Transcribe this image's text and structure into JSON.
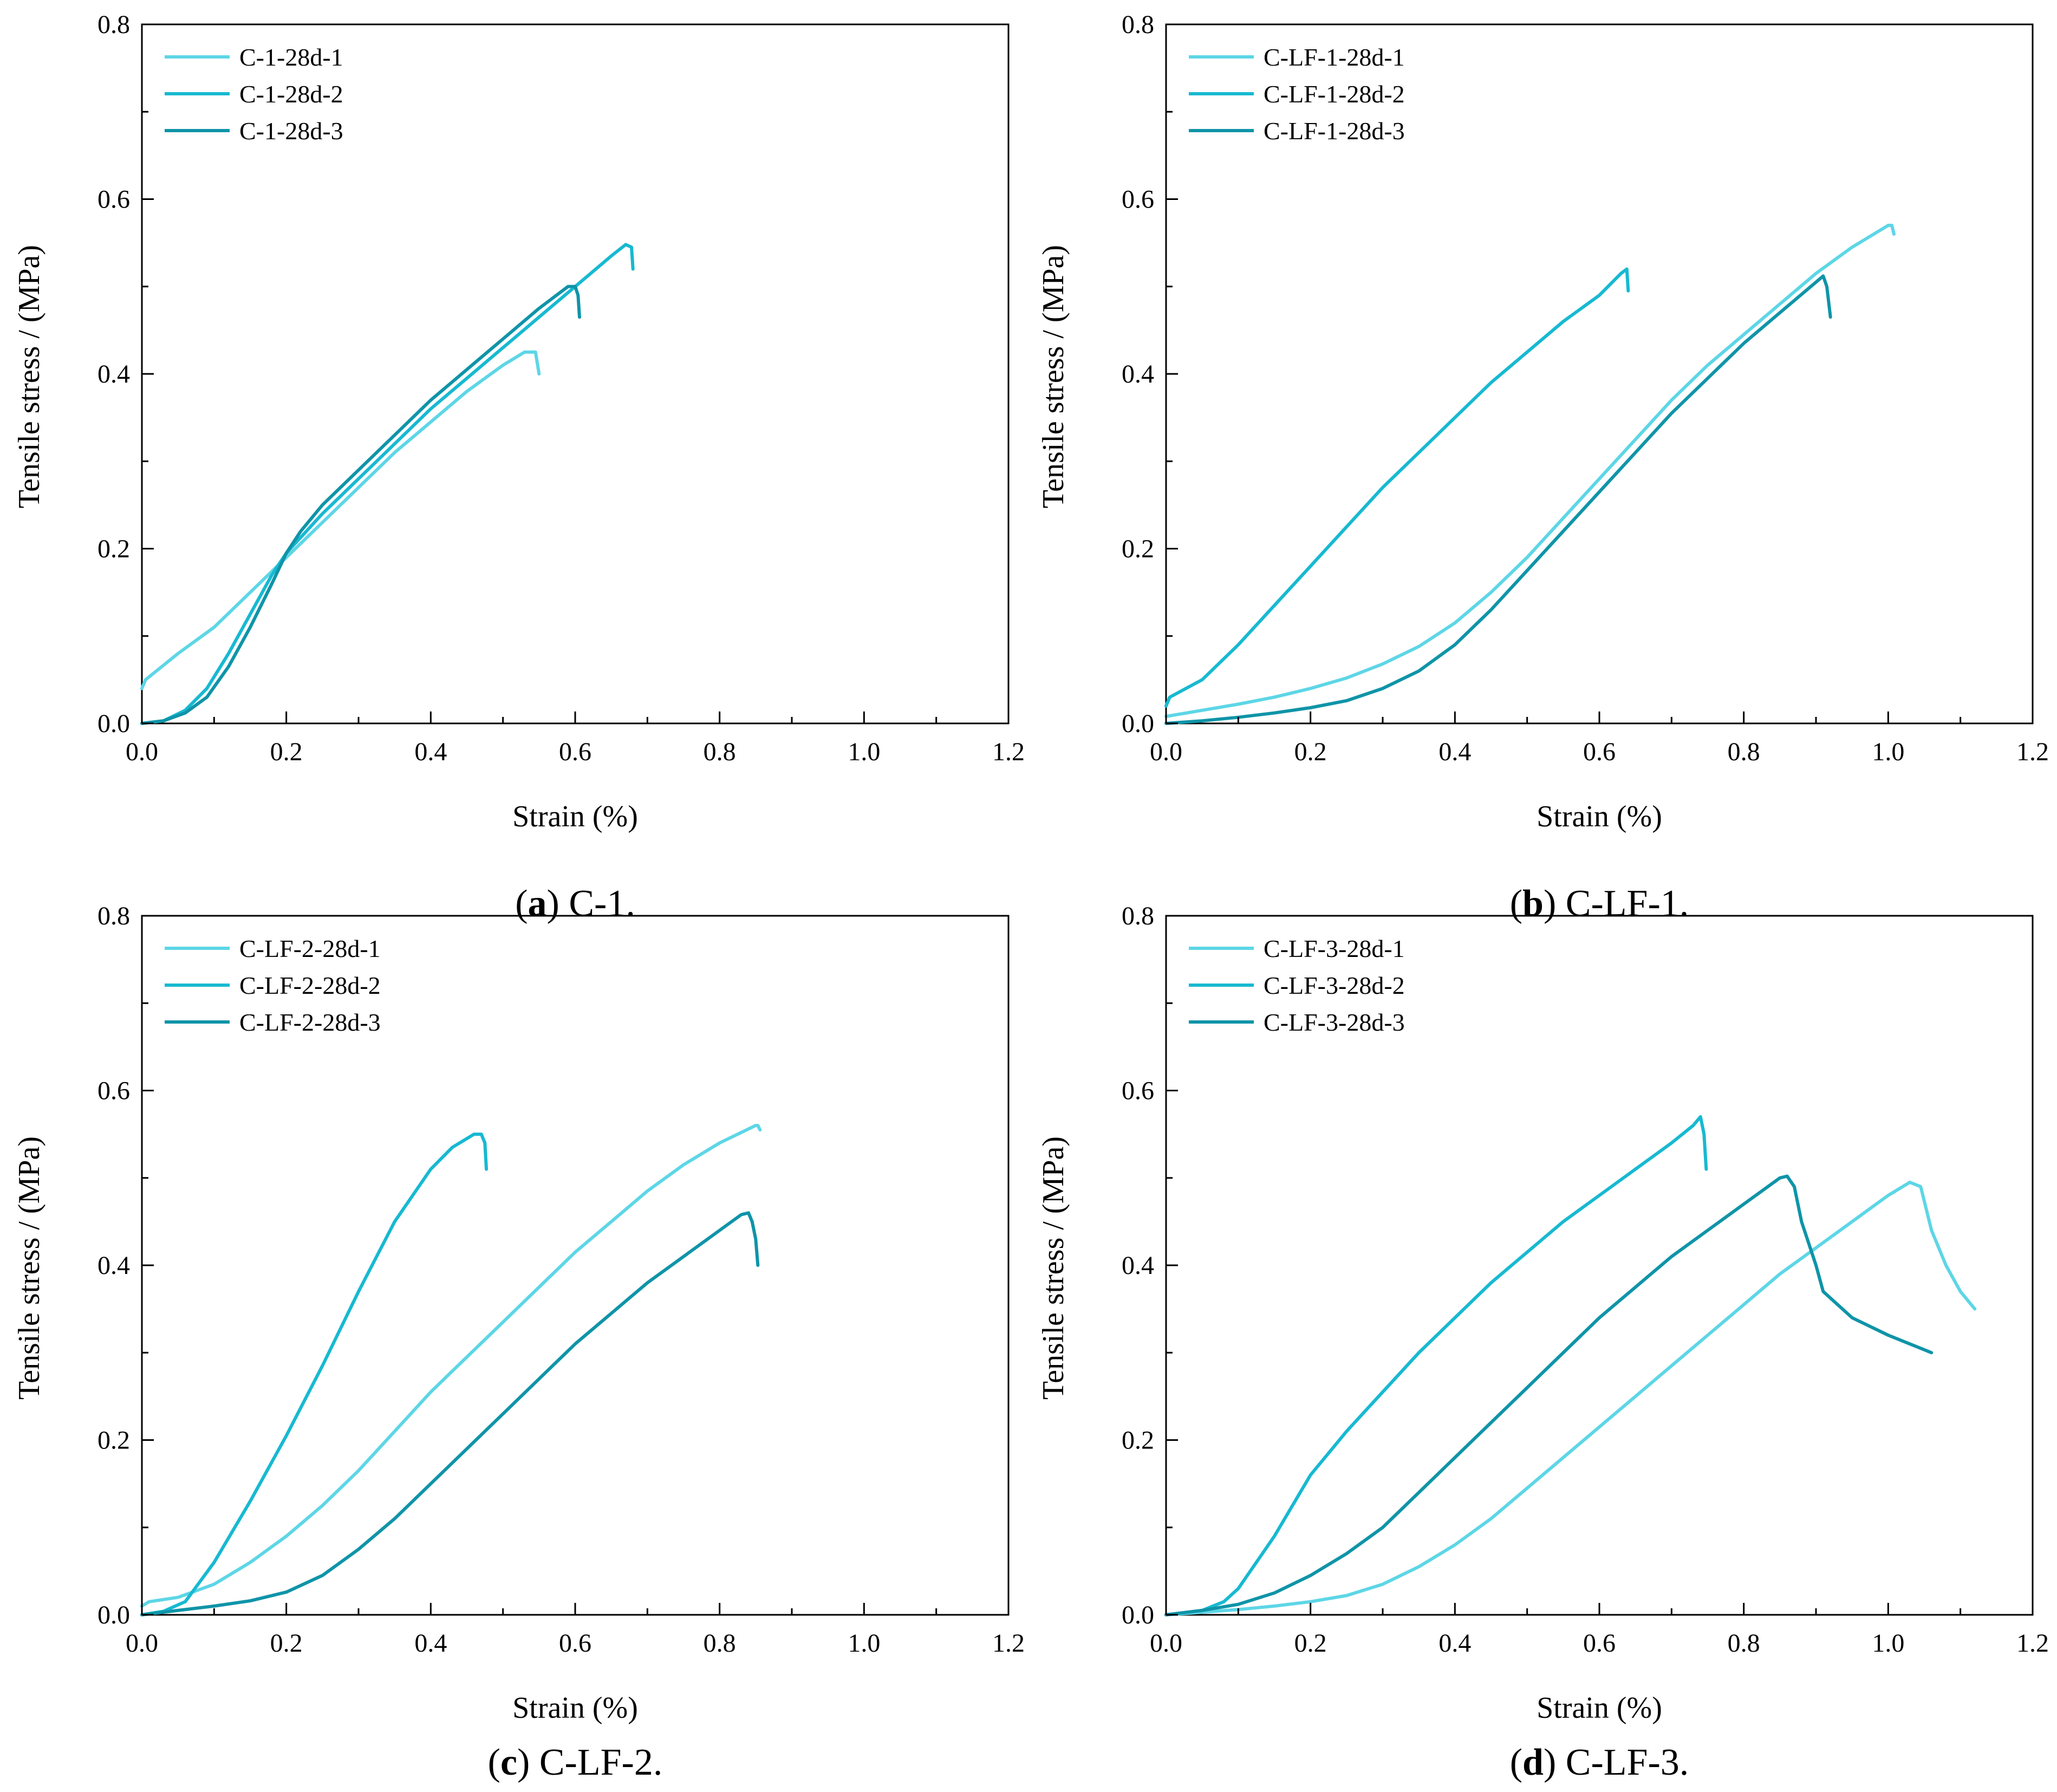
{
  "figure": {
    "colors": {
      "series1": "#5dd6e6",
      "series2": "#17b9d1",
      "series3": "#0f94a8",
      "axis": "#000000"
    },
    "panels": [
      {
        "caption_letter": "a",
        "caption_text": "C-1.",
        "chart_ref": 0
      },
      {
        "caption_letter": "b",
        "caption_text": "C-LF-1.",
        "chart_ref": 1
      },
      {
        "caption_letter": "c",
        "caption_text": "C-LF-2.",
        "chart_ref": 2
      },
      {
        "caption_letter": "d",
        "caption_text": "C-LF-3.",
        "chart_ref": 3
      }
    ]
  },
  "chart_data": [
    {
      "type": "line",
      "title": "",
      "xlabel": "Strain (%)",
      "ylabel": "Tensile stress / (MPa)",
      "xlim": [
        0,
        1.2
      ],
      "ylim": [
        0,
        0.8
      ],
      "xticks": [
        "0.0",
        "0.2",
        "0.4",
        "0.6",
        "0.8",
        "1.0",
        "1.2"
      ],
      "yticks": [
        "0.0",
        "0.2",
        "0.4",
        "0.6",
        "0.8"
      ],
      "legend_position": "top-left",
      "series": [
        {
          "name": "C-1-28d-1",
          "x": [
            0,
            0.005,
            0.02,
            0.05,
            0.1,
            0.15,
            0.2,
            0.25,
            0.3,
            0.35,
            0.4,
            0.45,
            0.5,
            0.53,
            0.545,
            0.55
          ],
          "y": [
            0.04,
            0.05,
            0.06,
            0.08,
            0.11,
            0.15,
            0.19,
            0.23,
            0.27,
            0.31,
            0.345,
            0.38,
            0.41,
            0.425,
            0.425,
            0.4
          ]
        },
        {
          "name": "C-1-28d-2",
          "x": [
            0,
            0.03,
            0.06,
            0.09,
            0.12,
            0.15,
            0.18,
            0.2,
            0.25,
            0.3,
            0.35,
            0.4,
            0.45,
            0.5,
            0.55,
            0.6,
            0.65,
            0.67,
            0.678,
            0.68
          ],
          "y": [
            0,
            0.003,
            0.015,
            0.04,
            0.08,
            0.125,
            0.17,
            0.195,
            0.24,
            0.28,
            0.32,
            0.36,
            0.395,
            0.43,
            0.465,
            0.5,
            0.535,
            0.548,
            0.545,
            0.52
          ]
        },
        {
          "name": "C-1-28d-3",
          "x": [
            0,
            0.03,
            0.06,
            0.09,
            0.12,
            0.15,
            0.18,
            0.2,
            0.22,
            0.25,
            0.3,
            0.35,
            0.4,
            0.45,
            0.5,
            0.55,
            0.59,
            0.6,
            0.604,
            0.606
          ],
          "y": [
            0,
            0.003,
            0.012,
            0.03,
            0.065,
            0.11,
            0.16,
            0.195,
            0.22,
            0.25,
            0.29,
            0.33,
            0.37,
            0.405,
            0.44,
            0.475,
            0.5,
            0.5,
            0.49,
            0.465
          ]
        }
      ]
    },
    {
      "type": "line",
      "title": "",
      "xlabel": "Strain (%)",
      "ylabel": "Tensile stress / (MPa)",
      "xlim": [
        0,
        1.2
      ],
      "ylim": [
        0,
        0.8
      ],
      "xticks": [
        "0.0",
        "0.2",
        "0.4",
        "0.6",
        "0.8",
        "1.0",
        "1.2"
      ],
      "yticks": [
        "0.0",
        "0.2",
        "0.4",
        "0.6",
        "0.8"
      ],
      "legend_position": "top-left",
      "series": [
        {
          "name": "C-LF-1-28d-1",
          "x": [
            0,
            0.05,
            0.1,
            0.15,
            0.2,
            0.25,
            0.3,
            0.35,
            0.4,
            0.45,
            0.5,
            0.55,
            0.6,
            0.65,
            0.7,
            0.75,
            0.8,
            0.85,
            0.9,
            0.95,
            1.0,
            1.005,
            1.008
          ],
          "y": [
            0.008,
            0.015,
            0.022,
            0.03,
            0.04,
            0.052,
            0.068,
            0.088,
            0.115,
            0.15,
            0.19,
            0.235,
            0.28,
            0.325,
            0.37,
            0.41,
            0.445,
            0.48,
            0.515,
            0.545,
            0.57,
            0.57,
            0.56
          ]
        },
        {
          "name": "C-LF-1-28d-2",
          "x": [
            0,
            0.005,
            0.05,
            0.1,
            0.15,
            0.2,
            0.25,
            0.3,
            0.35,
            0.4,
            0.45,
            0.5,
            0.55,
            0.6,
            0.63,
            0.638,
            0.64
          ],
          "y": [
            0.02,
            0.03,
            0.05,
            0.09,
            0.135,
            0.18,
            0.225,
            0.27,
            0.31,
            0.35,
            0.39,
            0.425,
            0.46,
            0.49,
            0.515,
            0.52,
            0.495
          ]
        },
        {
          "name": "C-LF-1-28d-3",
          "x": [
            0,
            0.05,
            0.1,
            0.15,
            0.2,
            0.25,
            0.3,
            0.35,
            0.4,
            0.45,
            0.5,
            0.55,
            0.6,
            0.65,
            0.7,
            0.75,
            0.8,
            0.85,
            0.9,
            0.91,
            0.915,
            0.92
          ],
          "y": [
            0,
            0.003,
            0.007,
            0.012,
            0.018,
            0.026,
            0.04,
            0.06,
            0.09,
            0.13,
            0.175,
            0.22,
            0.265,
            0.31,
            0.355,
            0.395,
            0.435,
            0.47,
            0.505,
            0.512,
            0.5,
            0.465
          ]
        }
      ]
    },
    {
      "type": "line",
      "title": "",
      "xlabel": "Strain (%)",
      "ylabel": "Tensile stress / (MPa)",
      "xlim": [
        0,
        1.2
      ],
      "ylim": [
        0,
        0.8
      ],
      "xticks": [
        "0.0",
        "0.2",
        "0.4",
        "0.6",
        "0.8",
        "1.0",
        "1.2"
      ],
      "yticks": [
        "0.0",
        "0.2",
        "0.4",
        "0.6",
        "0.8"
      ],
      "legend_position": "top-left",
      "series": [
        {
          "name": "C-LF-2-28d-1",
          "x": [
            0,
            0.01,
            0.05,
            0.1,
            0.15,
            0.2,
            0.25,
            0.3,
            0.35,
            0.4,
            0.45,
            0.5,
            0.55,
            0.6,
            0.65,
            0.7,
            0.75,
            0.8,
            0.85,
            0.853,
            0.856
          ],
          "y": [
            0.01,
            0.015,
            0.02,
            0.035,
            0.06,
            0.09,
            0.125,
            0.165,
            0.21,
            0.255,
            0.295,
            0.335,
            0.375,
            0.415,
            0.45,
            0.485,
            0.515,
            0.54,
            0.56,
            0.56,
            0.555
          ]
        },
        {
          "name": "C-LF-2-28d-2",
          "x": [
            0,
            0.03,
            0.06,
            0.1,
            0.15,
            0.2,
            0.25,
            0.3,
            0.35,
            0.4,
            0.43,
            0.46,
            0.47,
            0.475,
            0.477
          ],
          "y": [
            0,
            0.004,
            0.015,
            0.06,
            0.13,
            0.205,
            0.285,
            0.37,
            0.45,
            0.51,
            0.535,
            0.55,
            0.55,
            0.54,
            0.51
          ]
        },
        {
          "name": "C-LF-2-28d-3",
          "x": [
            0,
            0.05,
            0.1,
            0.15,
            0.2,
            0.25,
            0.3,
            0.35,
            0.4,
            0.45,
            0.5,
            0.55,
            0.6,
            0.65,
            0.7,
            0.75,
            0.8,
            0.83,
            0.84,
            0.845,
            0.85,
            0.853
          ],
          "y": [
            0,
            0.005,
            0.01,
            0.016,
            0.026,
            0.045,
            0.075,
            0.11,
            0.15,
            0.19,
            0.23,
            0.27,
            0.31,
            0.345,
            0.38,
            0.41,
            0.44,
            0.458,
            0.46,
            0.45,
            0.43,
            0.4
          ]
        }
      ]
    },
    {
      "type": "line",
      "title": "",
      "xlabel": "Strain (%)",
      "ylabel": "Tensile stress / (MPa)",
      "xlim": [
        0,
        1.2
      ],
      "ylim": [
        0,
        0.8
      ],
      "xticks": [
        "0.0",
        "0.2",
        "0.4",
        "0.6",
        "0.8",
        "1.0",
        "1.2"
      ],
      "yticks": [
        "0.0",
        "0.2",
        "0.4",
        "0.6",
        "0.8"
      ],
      "legend_position": "top-left",
      "series": [
        {
          "name": "C-LF-3-28d-1",
          "x": [
            0,
            0.05,
            0.1,
            0.15,
            0.2,
            0.25,
            0.3,
            0.35,
            0.4,
            0.45,
            0.5,
            0.55,
            0.6,
            0.65,
            0.7,
            0.75,
            0.8,
            0.85,
            0.9,
            0.95,
            1.0,
            1.03,
            1.045,
            1.06,
            1.08,
            1.1,
            1.12
          ],
          "y": [
            0,
            0.003,
            0.006,
            0.01,
            0.015,
            0.022,
            0.035,
            0.055,
            0.08,
            0.11,
            0.145,
            0.18,
            0.215,
            0.25,
            0.285,
            0.32,
            0.355,
            0.39,
            0.42,
            0.45,
            0.48,
            0.495,
            0.49,
            0.44,
            0.4,
            0.37,
            0.35
          ]
        },
        {
          "name": "C-LF-3-28d-2",
          "x": [
            0,
            0.05,
            0.08,
            0.1,
            0.15,
            0.2,
            0.25,
            0.3,
            0.35,
            0.4,
            0.45,
            0.5,
            0.55,
            0.6,
            0.65,
            0.7,
            0.73,
            0.74,
            0.745,
            0.748
          ],
          "y": [
            0,
            0.005,
            0.015,
            0.03,
            0.09,
            0.16,
            0.21,
            0.255,
            0.3,
            0.34,
            0.38,
            0.415,
            0.45,
            0.48,
            0.51,
            0.54,
            0.56,
            0.57,
            0.55,
            0.51
          ]
        },
        {
          "name": "C-LF-3-28d-3",
          "x": [
            0,
            0.05,
            0.1,
            0.15,
            0.2,
            0.25,
            0.3,
            0.35,
            0.4,
            0.45,
            0.5,
            0.55,
            0.6,
            0.65,
            0.7,
            0.75,
            0.8,
            0.85,
            0.86,
            0.87,
            0.88,
            0.9,
            0.91,
            0.95,
            1.0,
            1.06
          ],
          "y": [
            0,
            0.005,
            0.012,
            0.025,
            0.045,
            0.07,
            0.1,
            0.14,
            0.18,
            0.22,
            0.26,
            0.3,
            0.34,
            0.375,
            0.41,
            0.44,
            0.47,
            0.5,
            0.502,
            0.49,
            0.45,
            0.4,
            0.37,
            0.34,
            0.32,
            0.3
          ]
        }
      ]
    }
  ]
}
